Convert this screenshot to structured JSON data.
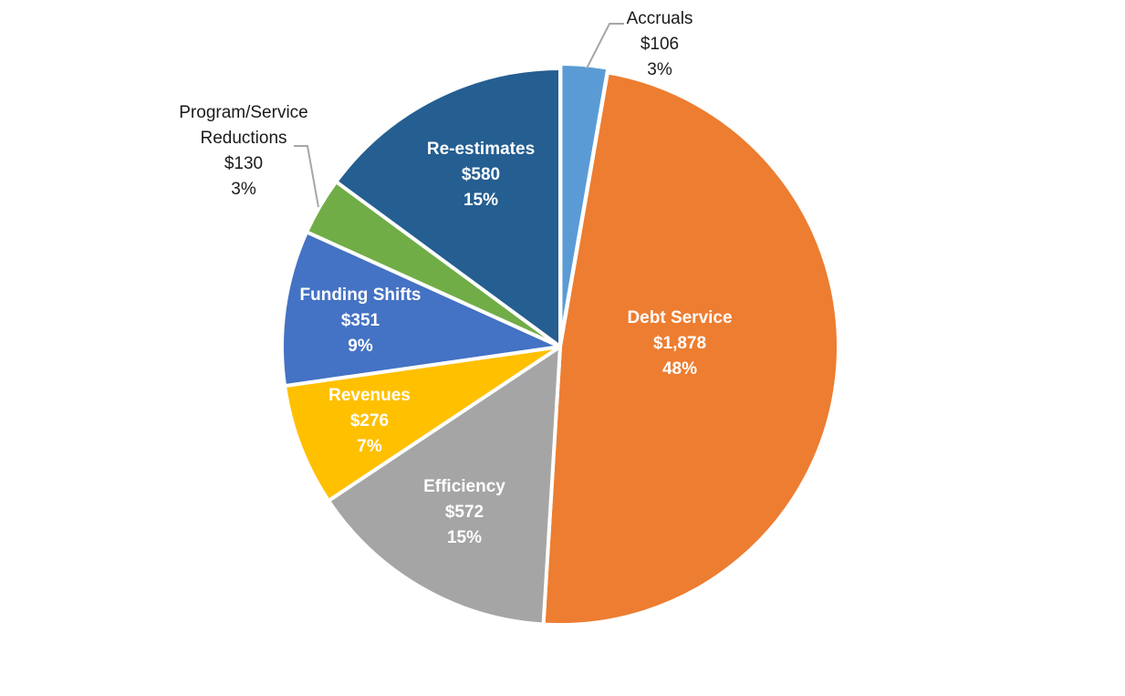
{
  "chart_data": {
    "type": "pie",
    "title": "",
    "start_angle_deg": 0,
    "direction": "clockwise",
    "slices": [
      {
        "name": "Accruals",
        "value": 106,
        "value_label": "$106",
        "percent_label": "3%",
        "color": "#5b9bd5",
        "label_position": "outside"
      },
      {
        "name": "Debt Service",
        "value": 1878,
        "value_label": "$1,878",
        "percent_label": "48%",
        "color": "#ed7d31",
        "label_position": "inside"
      },
      {
        "name": "Efficiency",
        "value": 572,
        "value_label": "$572",
        "percent_label": "15%",
        "color": "#a5a5a5",
        "label_position": "inside"
      },
      {
        "name": "Revenues",
        "value": 276,
        "value_label": "$276",
        "percent_label": "7%",
        "color": "#ffc000",
        "label_position": "inside"
      },
      {
        "name": "Funding Shifts",
        "value": 351,
        "value_label": "$351",
        "percent_label": "9%",
        "color": "#4472c4",
        "label_position": "inside"
      },
      {
        "name": "Program/Service Reductions",
        "value": 130,
        "value_label": "$130",
        "percent_label": "3%",
        "color": "#70ad47",
        "label_position": "outside"
      },
      {
        "name": "Re-estimates",
        "value": 580,
        "value_label": "$580",
        "percent_label": "15%",
        "color": "#255e91",
        "label_position": "inside"
      }
    ],
    "label_lines": {
      "Program/Service Reductions": [
        "Program/Service",
        "Reductions",
        "$130",
        "3%"
      ]
    },
    "legend": "none"
  }
}
